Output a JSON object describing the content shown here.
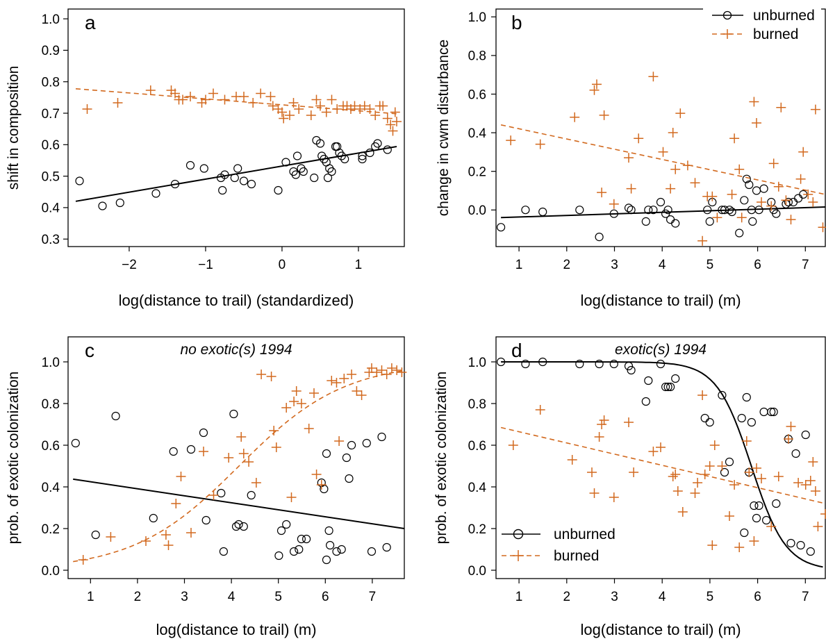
{
  "figure": {
    "colors": {
      "unburned": "#000000",
      "burned": "#D2691E",
      "frame": "#000000"
    },
    "legend": {
      "unburned": "unburned",
      "burned": "burned"
    }
  },
  "chart_data": [
    {
      "panel": "a",
      "type": "scatter",
      "title": "",
      "xlabel": "log(distance to trail) (standardized)",
      "ylabel": "shift in composition",
      "xlim": [
        -2.8,
        1.6
      ],
      "ylim": [
        0.28,
        1.04
      ],
      "xticks": [
        -2,
        -1,
        0,
        1
      ],
      "xtick_labels": [
        "−2",
        "−1",
        "0",
        "1"
      ],
      "yticks": [
        0.3,
        0.4,
        0.5,
        0.6,
        0.7,
        0.8,
        0.9,
        1.0
      ],
      "ytick_labels": [
        "0.3",
        "0.4",
        "0.5",
        "0.6",
        "0.7",
        "0.8",
        "0.9",
        "1.0"
      ],
      "grid": false,
      "legend": "none",
      "series": [
        {
          "group": "unburned",
          "marker": "circle",
          "x": [
            -2.65,
            -2.35,
            -2.12,
            -1.65,
            -1.4,
            -1.2,
            -1.02,
            -0.8,
            -0.78,
            -0.75,
            -0.62,
            -0.58,
            -0.5,
            -0.4,
            -0.05,
            0.05,
            0.15,
            0.18,
            0.2,
            0.25,
            0.28,
            0.42,
            0.45,
            0.5,
            0.52,
            0.55,
            0.58,
            0.6,
            0.62,
            0.65,
            0.7,
            0.72,
            0.75,
            0.78,
            0.82,
            1.05,
            1.05,
            1.15,
            1.22,
            1.25,
            1.38
          ],
          "y": [
            0.49,
            0.41,
            0.42,
            0.45,
            0.48,
            0.54,
            0.53,
            0.5,
            0.46,
            0.51,
            0.5,
            0.53,
            0.49,
            0.48,
            0.46,
            0.55,
            0.52,
            0.51,
            0.57,
            0.53,
            0.52,
            0.5,
            0.62,
            0.61,
            0.57,
            0.56,
            0.55,
            0.5,
            0.53,
            0.52,
            0.6,
            0.6,
            0.58,
            0.57,
            0.56,
            0.57,
            0.56,
            0.58,
            0.6,
            0.61,
            0.59
          ]
        },
        {
          "group": "burned",
          "marker": "plus",
          "x": [
            -2.55,
            -2.15,
            -1.72,
            -1.45,
            -1.4,
            -1.35,
            -1.3,
            -1.2,
            -1.05,
            -1.0,
            -0.9,
            -0.75,
            -0.6,
            -0.5,
            -0.38,
            -0.28,
            -0.15,
            -0.12,
            -0.05,
            0.0,
            0.02,
            0.1,
            0.15,
            0.22,
            0.38,
            0.45,
            0.5,
            0.58,
            0.65,
            0.72,
            0.8,
            0.85,
            0.9,
            0.95,
            1.02,
            1.08,
            1.15,
            1.22,
            1.28,
            1.32,
            1.38,
            1.42,
            1.45,
            1.48,
            1.5
          ],
          "y": [
            0.72,
            0.74,
            0.78,
            0.78,
            0.77,
            0.75,
            0.75,
            0.76,
            0.74,
            0.75,
            0.77,
            0.75,
            0.76,
            0.76,
            0.74,
            0.77,
            0.76,
            0.73,
            0.72,
            0.71,
            0.69,
            0.7,
            0.74,
            0.72,
            0.7,
            0.75,
            0.73,
            0.71,
            0.75,
            0.72,
            0.73,
            0.73,
            0.72,
            0.73,
            0.72,
            0.73,
            0.72,
            0.7,
            0.73,
            0.73,
            0.69,
            0.67,
            0.65,
            0.71,
            0.68
          ]
        }
      ],
      "fits": [
        {
          "group": "unburned",
          "style": "solid",
          "x": [
            -2.7,
            1.5
          ],
          "y": [
            0.425,
            0.6
          ]
        },
        {
          "group": "burned",
          "style": "dashed",
          "x": [
            -2.7,
            1.5
          ],
          "y": [
            0.785,
            0.705
          ]
        }
      ]
    },
    {
      "panel": "b",
      "type": "scatter",
      "title": "",
      "xlabel": "log(distance to trail) (m)",
      "ylabel": "change in cwm disturbance",
      "xlim": [
        0.7,
        7.4
      ],
      "ylim": [
        -0.19,
        1.04
      ],
      "xticks": [
        1,
        2,
        3,
        4,
        5,
        6,
        7
      ],
      "xtick_labels": [
        "1",
        "2",
        "3",
        "4",
        "5",
        "6",
        "7"
      ],
      "yticks": [
        0.0,
        0.2,
        0.4,
        0.6,
        0.8,
        1.0
      ],
      "ytick_labels": [
        "0.0",
        "0.2",
        "0.4",
        "0.6",
        "0.8",
        "1.0"
      ],
      "grid": false,
      "legend": "top-right",
      "series": [
        {
          "group": "unburned",
          "marker": "circle",
          "x": [
            0.8,
            1.3,
            1.65,
            2.4,
            2.8,
            3.1,
            3.4,
            3.45,
            3.75,
            3.8,
            3.9,
            4.05,
            4.15,
            4.2,
            4.25,
            4.35,
            5.0,
            5.05,
            5.1,
            5.3,
            5.35,
            5.45,
            5.5,
            5.65,
            5.75,
            5.8,
            5.85,
            5.9,
            5.92,
            6.0,
            6.05,
            6.15,
            6.3,
            6.35,
            6.4,
            6.6,
            6.65,
            6.75,
            6.85,
            6.95
          ],
          "y": [
            -0.09,
            0.0,
            -0.01,
            0.0,
            -0.14,
            -0.02,
            0.01,
            0.0,
            -0.06,
            0.0,
            0.0,
            0.04,
            -0.02,
            0.0,
            -0.05,
            -0.07,
            0.0,
            -0.06,
            0.04,
            0.0,
            0.0,
            0.0,
            -0.01,
            -0.12,
            0.05,
            0.16,
            0.13,
            0.0,
            -0.06,
            0.1,
            0.0,
            0.11,
            0.04,
            0.0,
            -0.02,
            0.03,
            0.04,
            0.04,
            0.06,
            0.08
          ]
        },
        {
          "group": "burned",
          "marker": "plus",
          "x": [
            1.0,
            1.6,
            2.3,
            2.7,
            2.75,
            2.85,
            2.9,
            3.1,
            3.4,
            3.45,
            3.6,
            3.9,
            4.1,
            4.25,
            4.3,
            4.35,
            4.45,
            4.6,
            4.75,
            4.9,
            5.0,
            5.1,
            5.2,
            5.5,
            5.55,
            5.65,
            5.7,
            5.95,
            6.0,
            6.1,
            6.3,
            6.35,
            6.45,
            6.5,
            6.6,
            6.7,
            6.9,
            6.95,
            7.05,
            7.15,
            7.2,
            7.35
          ],
          "y": [
            0.36,
            0.34,
            0.48,
            0.62,
            0.65,
            0.09,
            0.49,
            0.03,
            0.27,
            0.11,
            0.37,
            0.69,
            0.3,
            0.11,
            0.4,
            0.21,
            0.5,
            0.23,
            0.14,
            -0.16,
            0.07,
            0.07,
            -0.04,
            0.08,
            0.37,
            0.21,
            -0.04,
            0.56,
            0.45,
            0.04,
            0.02,
            0.24,
            0.12,
            0.53,
            0.05,
            -0.05,
            0.16,
            0.3,
            0.08,
            0.04,
            0.52,
            -0.09
          ]
        }
      ],
      "fits": [
        {
          "group": "unburned",
          "style": "solid",
          "x": [
            0.8,
            7.4
          ],
          "y": [
            -0.04,
            0.015
          ]
        },
        {
          "group": "burned",
          "style": "dashed",
          "x": [
            0.8,
            7.4
          ],
          "y": [
            0.44,
            0.08
          ]
        }
      ]
    },
    {
      "panel": "c",
      "type": "scatter",
      "title": "no exotic(s) 1994",
      "xlabel": "log(distance to trail) (m)",
      "ylabel": "prob. of exotic colonization",
      "xlim": [
        0.7,
        7.4
      ],
      "ylim": [
        -0.04,
        1.12
      ],
      "xticks": [
        1,
        2,
        3,
        4,
        5,
        6,
        7
      ],
      "xtick_labels": [
        "1",
        "2",
        "3",
        "4",
        "5",
        "6",
        "7"
      ],
      "yticks": [
        0.0,
        0.2,
        0.4,
        0.6,
        0.8,
        1.0
      ],
      "ytick_labels": [
        "0.0",
        "0.2",
        "0.4",
        "0.6",
        "0.8",
        "1.0"
      ],
      "grid": false,
      "legend": "none",
      "series": [
        {
          "group": "unburned",
          "marker": "circle",
          "x": [
            0.85,
            1.25,
            1.65,
            2.4,
            2.8,
            3.15,
            3.4,
            3.45,
            3.75,
            3.8,
            4.0,
            4.05,
            4.1,
            4.2,
            4.35,
            4.9,
            4.95,
            5.05,
            5.2,
            5.3,
            5.35,
            5.45,
            5.75,
            5.8,
            5.85,
            5.85,
            5.9,
            5.92,
            6.05,
            6.15,
            6.25,
            6.3,
            6.35,
            6.65,
            6.75,
            6.95,
            7.05
          ],
          "y": [
            0.61,
            0.17,
            0.74,
            0.25,
            0.57,
            0.58,
            0.66,
            0.24,
            0.37,
            0.09,
            0.75,
            0.21,
            0.22,
            0.21,
            0.36,
            0.07,
            0.19,
            0.22,
            0.09,
            0.1,
            0.15,
            0.15,
            0.42,
            0.39,
            0.56,
            0.05,
            0.19,
            0.12,
            0.09,
            0.1,
            0.54,
            0.44,
            0.6,
            0.61,
            0.09,
            0.64,
            0.11
          ]
        },
        {
          "group": "burned",
          "marker": "plus",
          "x": [
            1.0,
            1.55,
            2.25,
            2.65,
            2.7,
            2.85,
            2.95,
            3.15,
            3.4,
            3.6,
            3.9,
            4.15,
            4.2,
            4.3,
            4.45,
            4.55,
            4.75,
            4.8,
            4.85,
            5.05,
            5.15,
            5.2,
            5.25,
            5.35,
            5.5,
            5.6,
            5.65,
            5.75,
            5.95,
            6.05,
            6.1,
            6.2,
            6.35,
            6.45,
            6.55,
            6.7,
            6.75,
            6.85,
            6.95,
            7.05,
            7.15,
            7.25,
            7.35
          ],
          "y": [
            0.05,
            0.16,
            0.14,
            0.17,
            0.12,
            0.32,
            0.45,
            0.18,
            0.57,
            0.36,
            0.54,
            0.64,
            0.56,
            0.52,
            0.42,
            0.94,
            0.93,
            0.67,
            0.59,
            0.78,
            0.35,
            0.81,
            0.86,
            0.8,
            0.68,
            0.85,
            0.46,
            0.41,
            0.91,
            0.9,
            0.62,
            0.92,
            0.94,
            0.86,
            0.84,
            0.95,
            0.97,
            0.95,
            0.96,
            0.94,
            0.97,
            0.96,
            0.95
          ]
        }
      ],
      "fits": [
        {
          "group": "unburned",
          "style": "solid",
          "x": [
            0.8,
            7.4
          ],
          "y": [
            0.437,
            0.2
          ]
        },
        {
          "group": "burned",
          "style": "dashed",
          "kind": "logistic",
          "x_start": 0.8,
          "x_end": 7.4,
          "intercept": -3.9,
          "slope": 0.95
        }
      ]
    },
    {
      "panel": "d",
      "type": "scatter",
      "title": "exotic(s) 1994",
      "xlabel": "log(distance to trail) (m)",
      "ylabel": "prob. of exotic colonization",
      "xlim": [
        0.7,
        7.4
      ],
      "ylim": [
        -0.04,
        1.12
      ],
      "xticks": [
        1,
        2,
        3,
        4,
        5,
        6,
        7
      ],
      "xtick_labels": [
        "1",
        "2",
        "3",
        "4",
        "5",
        "6",
        "7"
      ],
      "yticks": [
        0.0,
        0.2,
        0.4,
        0.6,
        0.8,
        1.0
      ],
      "ytick_labels": [
        "0.0",
        "0.2",
        "0.4",
        "0.6",
        "0.8",
        "1.0"
      ],
      "grid": false,
      "legend": "bottom-left",
      "series": [
        {
          "group": "unburned",
          "marker": "circle",
          "x": [
            0.8,
            1.3,
            1.65,
            2.4,
            2.8,
            3.1,
            3.4,
            3.45,
            3.75,
            3.8,
            4.05,
            4.15,
            4.2,
            4.25,
            4.35,
            4.95,
            5.05,
            5.3,
            5.35,
            5.45,
            5.7,
            5.75,
            5.8,
            5.85,
            5.9,
            5.95,
            6.0,
            6.05,
            6.15,
            6.2,
            6.3,
            6.35,
            6.4,
            6.65,
            6.7,
            6.8,
            6.9,
            7.0,
            7.1
          ],
          "y": [
            1.0,
            0.99,
            1.0,
            0.99,
            0.99,
            0.99,
            0.98,
            0.96,
            0.81,
            0.91,
            0.99,
            0.88,
            0.88,
            0.88,
            0.92,
            0.73,
            0.71,
            0.84,
            0.47,
            0.52,
            0.73,
            0.18,
            0.83,
            0.47,
            0.71,
            0.31,
            0.25,
            0.31,
            0.76,
            0.24,
            0.76,
            0.76,
            0.32,
            0.63,
            0.13,
            0.56,
            0.12,
            0.65,
            0.09
          ]
        },
        {
          "group": "burned",
          "marker": "plus",
          "x": [
            1.05,
            1.6,
            2.25,
            2.65,
            2.7,
            2.8,
            2.85,
            2.9,
            3.1,
            3.4,
            3.5,
            3.9,
            4.05,
            4.3,
            4.35,
            4.4,
            4.5,
            4.75,
            4.8,
            4.9,
            4.95,
            5.05,
            5.1,
            5.15,
            5.3,
            5.45,
            5.55,
            5.65,
            5.8,
            5.85,
            5.95,
            6.0,
            6.1,
            6.3,
            6.45,
            6.65,
            6.7,
            6.85,
            7.0,
            7.1,
            7.15,
            7.2,
            7.25,
            7.4
          ],
          "y": [
            0.6,
            0.77,
            0.53,
            0.47,
            0.37,
            0.64,
            0.7,
            0.72,
            0.35,
            0.71,
            0.47,
            0.57,
            0.59,
            0.45,
            0.46,
            0.38,
            0.28,
            0.37,
            0.42,
            0.84,
            0.46,
            0.5,
            0.12,
            0.6,
            0.5,
            0.26,
            0.41,
            0.11,
            0.62,
            0.47,
            0.14,
            0.49,
            0.44,
            0.21,
            0.45,
            0.63,
            0.69,
            0.42,
            0.41,
            0.43,
            0.52,
            0.38,
            0.21,
            0.27
          ]
        }
      ],
      "fits": [
        {
          "group": "unburned",
          "style": "solid",
          "kind": "logistic",
          "x_start": 0.8,
          "x_end": 7.35,
          "intercept": 16.8,
          "slope": -2.85
        },
        {
          "group": "burned",
          "style": "dashed",
          "x": [
            0.8,
            7.4
          ],
          "y": [
            0.685,
            0.32
          ]
        }
      ]
    }
  ]
}
